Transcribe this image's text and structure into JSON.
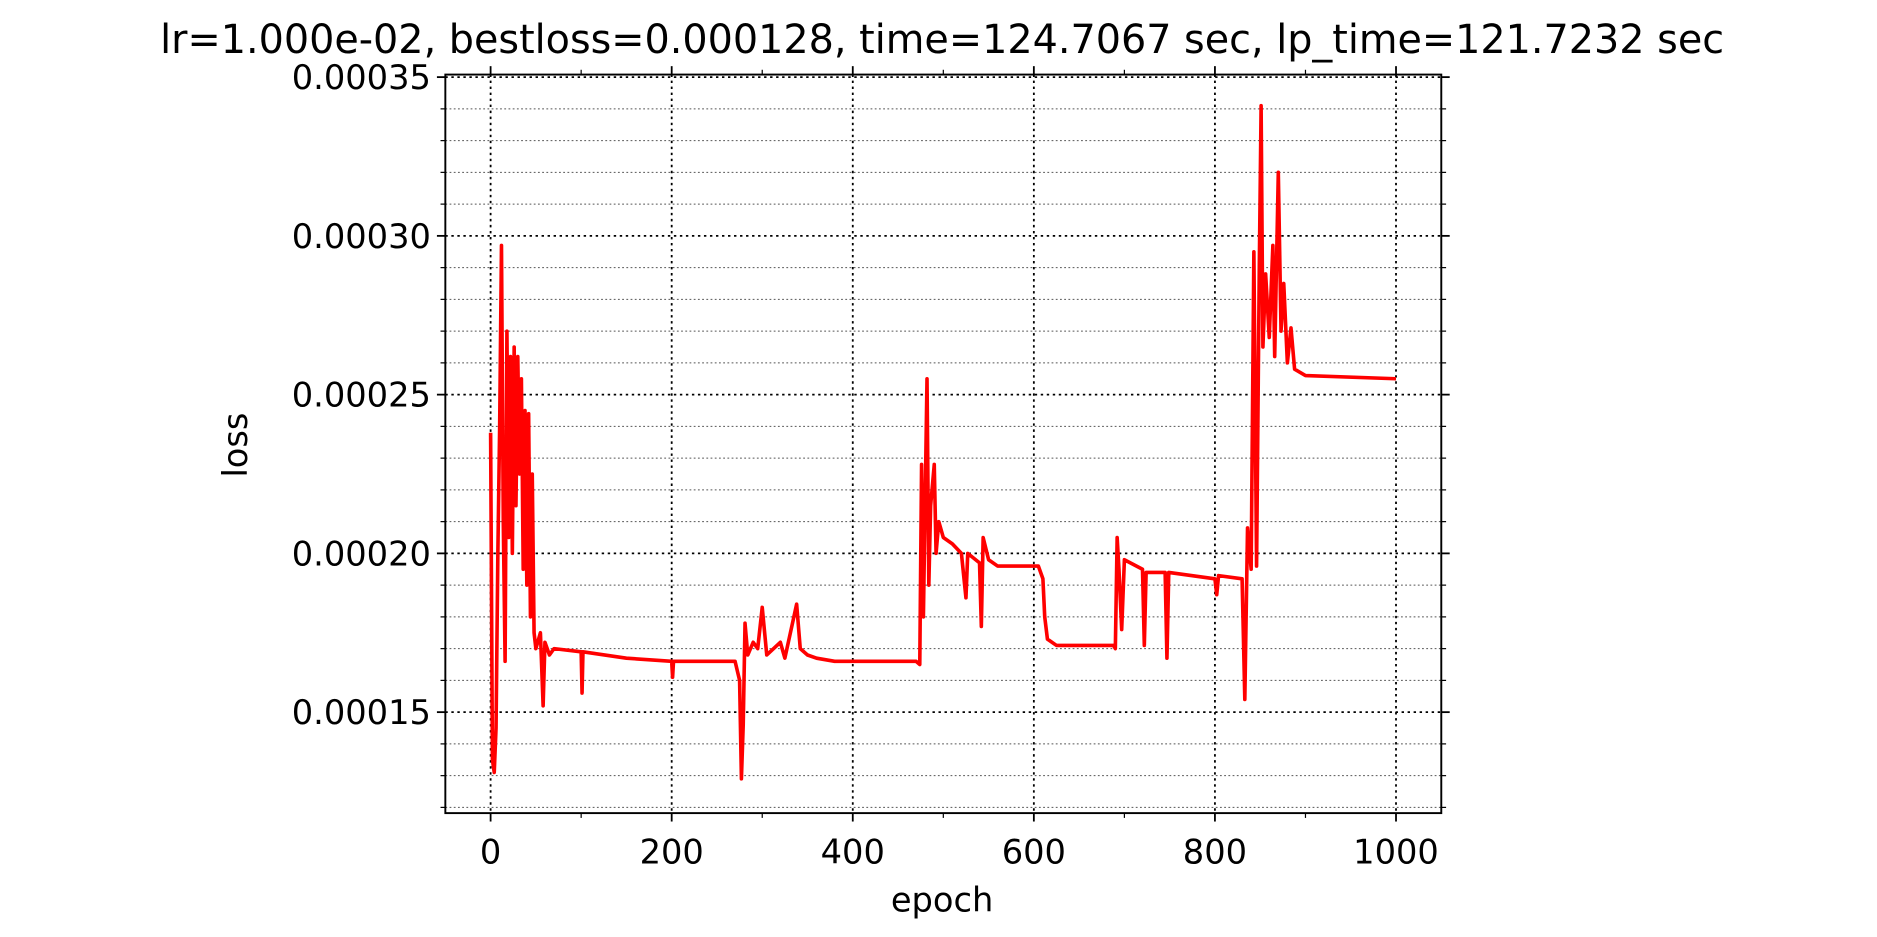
{
  "chart_data": {
    "type": "line",
    "title": "lr=1.000e-02, bestloss=0.000128, time=124.7067 sec, lp_time=121.7232 sec",
    "x_label": "epoch",
    "y_label": "loss",
    "grid": true,
    "xlim": [
      -50,
      1050
    ],
    "ylim": [
      0.0001182,
      0.0003508
    ],
    "xticks": [
      0,
      200,
      400,
      600,
      800,
      1000
    ],
    "xminor_ticks": [
      100,
      300,
      500,
      700,
      900
    ],
    "yticks": [
      0.00015,
      {
        "value": 0.0002,
        "label": "0.00020"
      },
      0.00025,
      {
        "value": 0.0003,
        "label": "0.00030"
      },
      0.00035
    ],
    "yminor_ticks": [
      0.00012,
      0.00013,
      0.00014,
      0.00016,
      0.00017,
      0.00018,
      0.00019,
      0.00021,
      0.00022,
      0.00023,
      0.00024,
      0.00026,
      0.00027,
      0.00028,
      0.00029,
      0.00031,
      0.00032,
      0.00033,
      0.00034
    ],
    "series": [
      {
        "color": "#ff0000",
        "x": [
          0,
          2,
          4,
          6,
          8,
          10,
          12,
          14,
          16,
          18,
          20,
          22,
          24,
          26,
          28,
          30,
          32,
          34,
          36,
          38,
          40,
          42,
          44,
          46,
          48,
          50,
          55,
          58,
          60,
          65,
          70,
          100,
          101,
          102,
          150,
          200,
          201,
          202,
          270,
          275,
          277,
          279,
          281,
          284,
          290,
          295,
          300,
          305,
          320,
          325,
          338,
          342,
          350,
          360,
          380,
          470,
          474,
          476,
          478,
          482,
          484,
          486,
          490,
          492,
          495,
          500,
          510,
          520,
          525,
          527,
          540,
          542,
          544,
          550,
          560,
          605,
          610,
          612,
          615,
          625,
          688,
          690,
          692,
          694,
          697,
          700,
          720,
          722,
          724,
          745,
          747,
          749,
          800,
          802,
          804,
          830,
          833,
          836,
          840,
          843,
          846,
          849,
          851,
          853,
          856,
          860,
          864,
          866,
          870,
          873,
          876,
          880,
          884,
          888,
          900,
          1000
        ],
        "values": [
          0.000238,
          0.000135,
          0.000131,
          0.000145,
          0.0002,
          0.00024,
          0.000297,
          0.00021,
          0.000166,
          0.00027,
          0.000205,
          0.000262,
          0.0002,
          0.000265,
          0.000215,
          0.000262,
          0.000225,
          0.000255,
          0.000195,
          0.000245,
          0.00019,
          0.000244,
          0.00018,
          0.000225,
          0.000175,
          0.00017,
          0.000175,
          0.000152,
          0.000172,
          0.000168,
          0.00017,
          0.000169,
          0.000156,
          0.000169,
          0.000167,
          0.000166,
          0.000161,
          0.000166,
          0.000166,
          0.00016,
          0.000129,
          0.000146,
          0.000178,
          0.000168,
          0.000172,
          0.00017,
          0.000183,
          0.000168,
          0.000172,
          0.000167,
          0.000184,
          0.00017,
          0.000168,
          0.000167,
          0.000166,
          0.000166,
          0.000165,
          0.000228,
          0.00018,
          0.000255,
          0.00019,
          0.000215,
          0.000228,
          0.0002,
          0.00021,
          0.000205,
          0.000203,
          0.0002,
          0.000186,
          0.0002,
          0.000197,
          0.000177,
          0.000205,
          0.000198,
          0.000196,
          0.000196,
          0.000192,
          0.00018,
          0.000173,
          0.000171,
          0.000171,
          0.00017,
          0.000205,
          0.000195,
          0.000176,
          0.000198,
          0.000195,
          0.000171,
          0.000194,
          0.000194,
          0.000167,
          0.000194,
          0.000192,
          0.000187,
          0.000193,
          0.000192,
          0.000154,
          0.000208,
          0.000195,
          0.000295,
          0.000196,
          0.00029,
          0.000341,
          0.000265,
          0.000288,
          0.000268,
          0.000297,
          0.000262,
          0.00032,
          0.00027,
          0.000285,
          0.00026,
          0.000271,
          0.000258,
          0.000256,
          0.000255
        ]
      }
    ]
  }
}
